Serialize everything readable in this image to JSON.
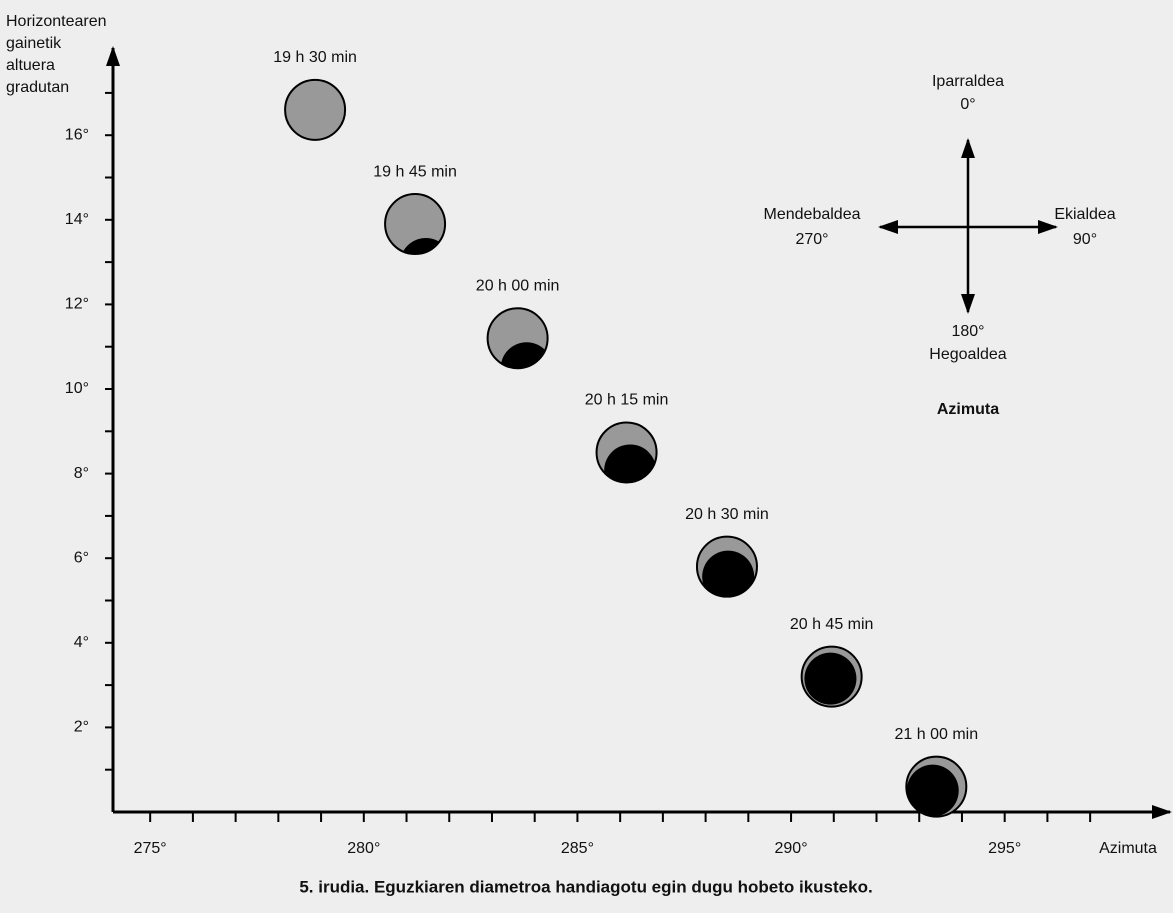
{
  "chart_data": {
    "type": "scatter",
    "y_label": [
      "Horizontearen",
      "gainetik",
      "altuera",
      "gradutan"
    ],
    "x_label": "Azimuta",
    "x": [
      278.86,
      281.2,
      283.6,
      286.15,
      288.5,
      290.95,
      293.4
    ],
    "y": [
      16.6,
      13.9,
      11.2,
      8.5,
      5.8,
      3.2,
      0.6
    ],
    "labels": [
      "19 h 30 min",
      "19 h 45 min",
      "20 h 00 min",
      "20 h 15 min",
      "20 h 30 min",
      "20 h 45 min",
      "21 h 00 min"
    ],
    "color": "#999999",
    "xlim": [
      274.13,
      298.6
    ],
    "ylim": [
      0,
      17.7
    ],
    "xticks": [
      {
        "value": 275,
        "label": "275°"
      },
      {
        "value": 280,
        "label": "280°"
      },
      {
        "value": 285,
        "label": "285°"
      },
      {
        "value": 290,
        "label": "290°"
      },
      {
        "value": 295,
        "label": "295°"
      }
    ],
    "yticks": [
      {
        "value": 2,
        "label": "2°"
      },
      {
        "value": 4,
        "label": "4°"
      },
      {
        "value": 6,
        "label": "6°"
      },
      {
        "value": 8,
        "label": "8°"
      },
      {
        "value": 10,
        "label": "10°"
      },
      {
        "value": 12,
        "label": "12°"
      },
      {
        "value": 14,
        "label": "14°"
      },
      {
        "value": 16,
        "label": "16°"
      }
    ],
    "xminorticks": [
      276,
      277,
      278,
      279,
      281,
      282,
      283,
      284,
      286,
      287,
      288,
      289,
      291,
      292,
      293,
      294,
      296,
      297
    ],
    "yminorticks": [
      1,
      3,
      5,
      7,
      9,
      11,
      13,
      15,
      17
    ]
  },
  "compass": {
    "north": "Iparraldea",
    "north_deg": "0°",
    "west": "Mendebaldea",
    "west_deg": "270°",
    "east": "Ekialdea",
    "east_deg": "90°",
    "south_deg": "180°",
    "south": "Hegoaldea",
    "title": "Azimuta"
  },
  "caption": "5. irudia. Eguzkiaren diametroa handiagotu egin dugu hobeto ikusteko."
}
